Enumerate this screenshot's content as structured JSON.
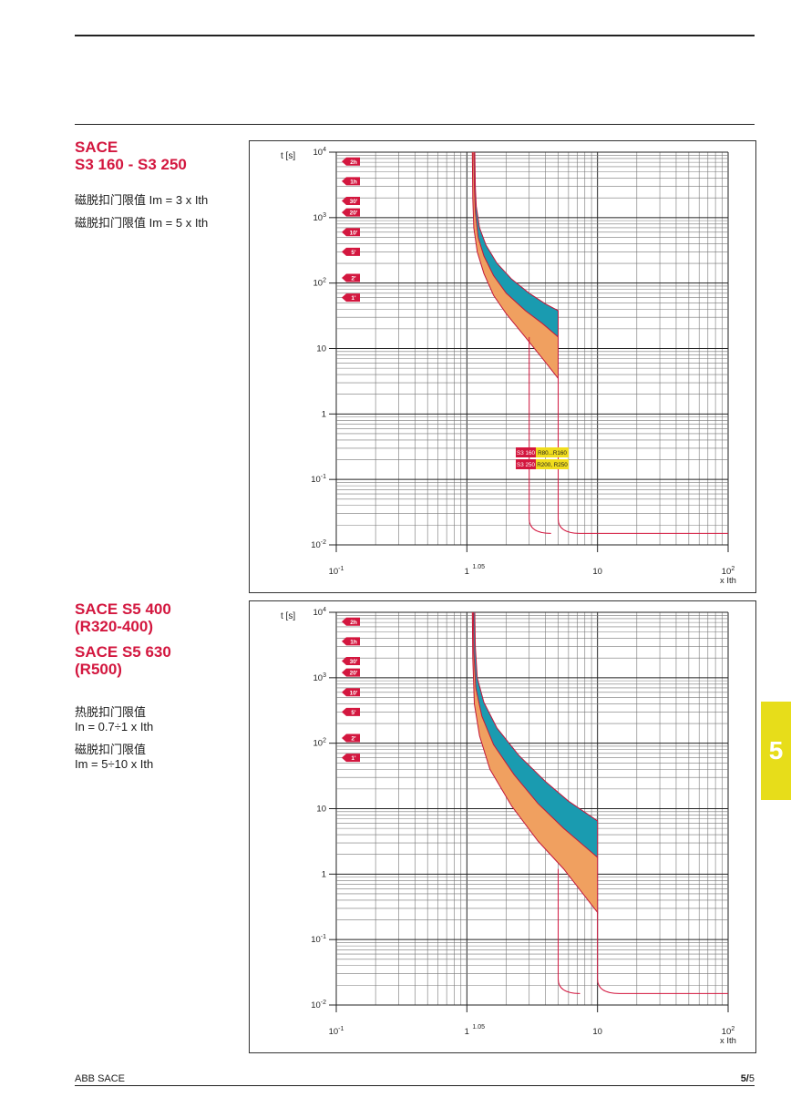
{
  "section1": {
    "title": "SACE\nS3 160 - S3 250",
    "note1": "磁脱扣门限值 Im = 3 x Ith",
    "note2": "磁脱扣门限值 Im = 5 x Ith"
  },
  "section2": {
    "title1": "SACE S5 400\n(R320-400)",
    "title2": "SACE S5 630\n(R500)",
    "note1": "热脱扣门限值\nIn = 0.7÷1 x Ith",
    "note2": "磁脱扣门限值\nIm = 5÷10 x Ith"
  },
  "side_tab": "5",
  "footer": {
    "left": "ABB SACE",
    "page_bold": "5/",
    "page_num": "5"
  },
  "colors": {
    "accent_red": "#d3173f",
    "teal": "#1a9bb0",
    "orange": "#f0a060",
    "tab_yellow": "#e7dd1a",
    "legend_yellow": "#f0dc1e"
  },
  "chart_data": [
    {
      "type": "line",
      "xscale": "log",
      "yscale": "log",
      "xlim": [
        0.1,
        100
      ],
      "ylim": [
        0.01,
        10000
      ],
      "ylabel": "t [s]",
      "xlabel": "x Ith",
      "x_ticks": [
        {
          "value": 0.1,
          "label": "10",
          "sup": "-1"
        },
        {
          "value": 1,
          "label": "1",
          "sup": ""
        },
        {
          "value": 1.05,
          "label": "",
          "sup": "1.05"
        },
        {
          "value": 10,
          "label": "10",
          "sup": ""
        },
        {
          "value": 100,
          "label": "10",
          "sup": "2"
        }
      ],
      "y_ticks": [
        {
          "value": 10000,
          "label": "10",
          "sup": "4"
        },
        {
          "value": 1000,
          "label": "10",
          "sup": "3"
        },
        {
          "value": 100,
          "label": "10",
          "sup": "2"
        },
        {
          "value": 10,
          "label": "10",
          "sup": ""
        },
        {
          "value": 1,
          "label": "1",
          "sup": ""
        },
        {
          "value": 0.1,
          "label": "10",
          "sup": "-1"
        },
        {
          "value": 0.01,
          "label": "10",
          "sup": "-2"
        }
      ],
      "time_markers": [
        {
          "label": "2h",
          "t": 7200
        },
        {
          "label": "1h",
          "t": 3600
        },
        {
          "label": "30'",
          "t": 1800
        },
        {
          "label": "20'",
          "t": 1200
        },
        {
          "label": "10'",
          "t": 600
        },
        {
          "label": "5'",
          "t": 300
        },
        {
          "label": "2'",
          "t": 120
        },
        {
          "label": "1'",
          "t": 60
        }
      ],
      "legend": [
        {
          "model": "S3 160",
          "rating": "R80...R160"
        },
        {
          "model": "S3 250",
          "rating": "R200, R250"
        }
      ],
      "thermal_upper": {
        "x": [
          1.15,
          1.16,
          1.18,
          1.25,
          1.4,
          1.7,
          2.2,
          3.0,
          4.0,
          5.0
        ],
        "t": [
          10000,
          3000,
          1500,
          700,
          380,
          200,
          115,
          70,
          48,
          38
        ]
      },
      "thermal_mid": {
        "x": [
          1.13,
          1.14,
          1.16,
          1.22,
          1.35,
          1.6,
          2.0,
          2.8,
          3.8,
          5.0
        ],
        "t": [
          10000,
          3000,
          1200,
          500,
          260,
          130,
          70,
          38,
          24,
          15
        ]
      },
      "thermal_lower": {
        "x": [
          1.1,
          1.11,
          1.13,
          1.2,
          1.35,
          1.6,
          2.0,
          2.8,
          3.8,
          5.0
        ],
        "t": [
          10000,
          2000,
          700,
          300,
          140,
          65,
          34,
          15,
          7,
          3.5
        ]
      },
      "magnetic_trips": [
        {
          "x": 3,
          "t_from": 15,
          "t_to": 0.015
        },
        {
          "x": 5,
          "t_from": 3.5,
          "t_to": 0.015
        }
      ],
      "instantaneous_t": 0.015
    },
    {
      "type": "line",
      "xscale": "log",
      "yscale": "log",
      "xlim": [
        0.1,
        100
      ],
      "ylim": [
        0.01,
        10000
      ],
      "ylabel": "t [s]",
      "xlabel": "x Ith",
      "x_ticks": [
        {
          "value": 0.1,
          "label": "10",
          "sup": "-1"
        },
        {
          "value": 1,
          "label": "1",
          "sup": ""
        },
        {
          "value": 1.05,
          "label": "",
          "sup": "1.05"
        },
        {
          "value": 10,
          "label": "10",
          "sup": ""
        },
        {
          "value": 100,
          "label": "10",
          "sup": "2"
        }
      ],
      "y_ticks": [
        {
          "value": 10000,
          "label": "10",
          "sup": "4"
        },
        {
          "value": 1000,
          "label": "10",
          "sup": "3"
        },
        {
          "value": 100,
          "label": "10",
          "sup": "2"
        },
        {
          "value": 10,
          "label": "10",
          "sup": ""
        },
        {
          "value": 1,
          "label": "1",
          "sup": ""
        },
        {
          "value": 0.1,
          "label": "10",
          "sup": "-1"
        },
        {
          "value": 0.01,
          "label": "10",
          "sup": "-2"
        }
      ],
      "time_markers": [
        {
          "label": "2h",
          "t": 7200
        },
        {
          "label": "1h",
          "t": 3600
        },
        {
          "label": "30'",
          "t": 1800
        },
        {
          "label": "20'",
          "t": 1200
        },
        {
          "label": "10'",
          "t": 600
        },
        {
          "label": "5'",
          "t": 300
        },
        {
          "label": "2'",
          "t": 120
        },
        {
          "label": "1'",
          "t": 60
        }
      ],
      "legend": [],
      "thermal_upper": {
        "x": [
          1.15,
          1.16,
          1.2,
          1.35,
          1.7,
          2.5,
          4.0,
          6.0,
          10.0
        ],
        "t": [
          10000,
          3000,
          1000,
          420,
          170,
          65,
          26,
          13,
          6.5
        ]
      },
      "thermal_mid": {
        "x": [
          1.12,
          1.13,
          1.17,
          1.3,
          1.6,
          2.3,
          3.5,
          5.5,
          10.0
        ],
        "t": [
          10000,
          2500,
          700,
          260,
          95,
          33,
          12,
          5,
          1.8
        ]
      },
      "thermal_lower": {
        "x": [
          1.1,
          1.11,
          1.14,
          1.25,
          1.5,
          2.2,
          3.5,
          5.5,
          10.0
        ],
        "t": [
          10000,
          2000,
          400,
          130,
          40,
          11,
          3.2,
          1.2,
          0.26
        ]
      },
      "magnetic_trips": [
        {
          "x": 5,
          "t_from": 1.2,
          "t_to": 0.015
        },
        {
          "x": 10,
          "t_from": 0.26,
          "t_to": 0.015
        }
      ],
      "instantaneous_t": 0.015
    }
  ]
}
